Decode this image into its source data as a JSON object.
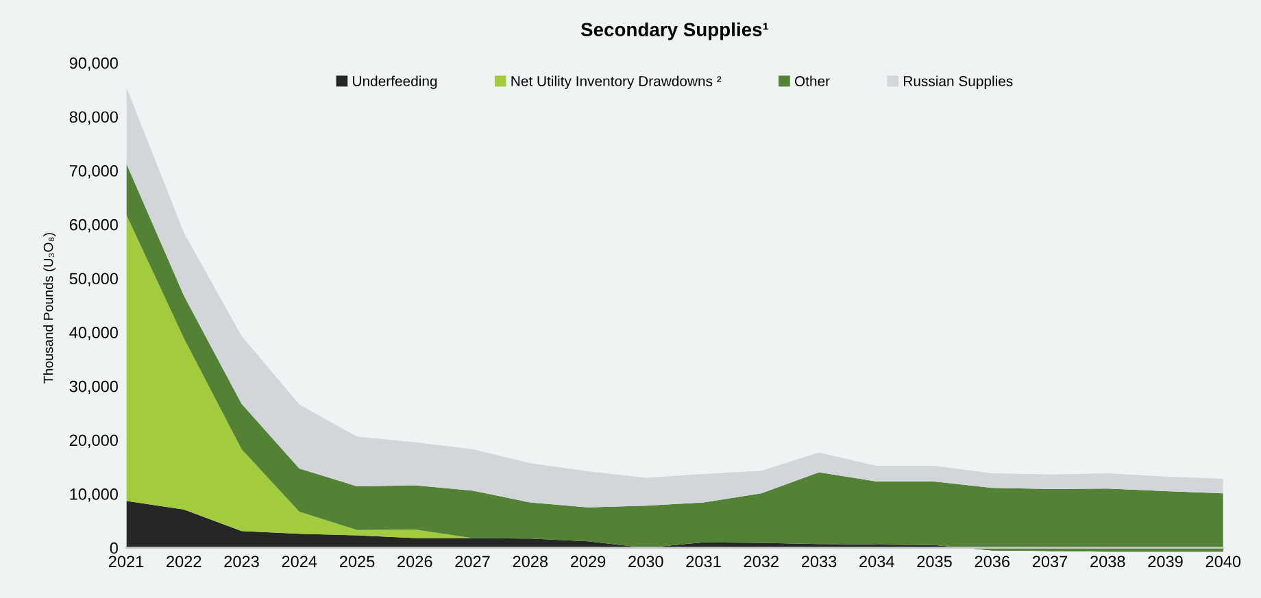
{
  "chart_data": {
    "type": "area",
    "stacked": true,
    "title": "Secondary Supplies¹",
    "ylabel": "Thousand Pounds (U₃O₈)",
    "x": [
      2021,
      2022,
      2023,
      2024,
      2025,
      2026,
      2027,
      2028,
      2029,
      2030,
      2031,
      2032,
      2033,
      2034,
      2035,
      2036,
      2037,
      2038,
      2039,
      2040
    ],
    "xlim": [
      2021,
      2040
    ],
    "xticks": [
      2021,
      2022,
      2023,
      2024,
      2025,
      2026,
      2027,
      2028,
      2029,
      2030,
      2031,
      2032,
      2033,
      2034,
      2035,
      2036,
      2037,
      2038,
      2039,
      2040
    ],
    "ylim": [
      -1000,
      90000
    ],
    "yticks": [
      {
        "value": 0,
        "label": "0"
      },
      {
        "value": 10000,
        "label": "10,000"
      },
      {
        "value": 20000,
        "label": "20,000"
      },
      {
        "value": 30000,
        "label": "30,000"
      },
      {
        "value": 40000,
        "label": "40,000"
      },
      {
        "value": 50000,
        "label": "50,000"
      },
      {
        "value": 60000,
        "label": "60,000"
      },
      {
        "value": 70000,
        "label": "70,000"
      },
      {
        "value": 80000,
        "label": "80,000"
      },
      {
        "value": 90000,
        "label": "90,000"
      }
    ],
    "grid": false,
    "legend": "top",
    "series": [
      {
        "name": "Underfeeding",
        "color": "#262626",
        "values": [
          8700,
          7100,
          3100,
          2600,
          2300,
          1800,
          1800,
          1700,
          1200,
          0,
          1000,
          900,
          700,
          600,
          500,
          -500,
          -600,
          -700,
          -700,
          -700
        ]
      },
      {
        "name": "Net Utility Inventory Drawdowns ²",
        "color": "#a2cb3e",
        "values": [
          53200,
          31800,
          15200,
          4100,
          1000,
          1600,
          0,
          0,
          0,
          0,
          0,
          0,
          0,
          0,
          0,
          0,
          0,
          0,
          0,
          0
        ]
      },
      {
        "name": "Other",
        "color": "#538135",
        "values": [
          9500,
          7900,
          8400,
          8000,
          8100,
          8200,
          8800,
          6700,
          6300,
          7800,
          7400,
          9200,
          13300,
          11700,
          11800,
          11600,
          11500,
          11700,
          11200,
          10800
        ]
      },
      {
        "name": "Russian Supplies",
        "color": "#d2d5da",
        "values": [
          14200,
          11700,
          12600,
          11900,
          9200,
          8000,
          7700,
          7300,
          6700,
          5200,
          5300,
          4200,
          3700,
          2900,
          2900,
          2700,
          2700,
          2800,
          2700,
          2700
        ]
      }
    ]
  }
}
